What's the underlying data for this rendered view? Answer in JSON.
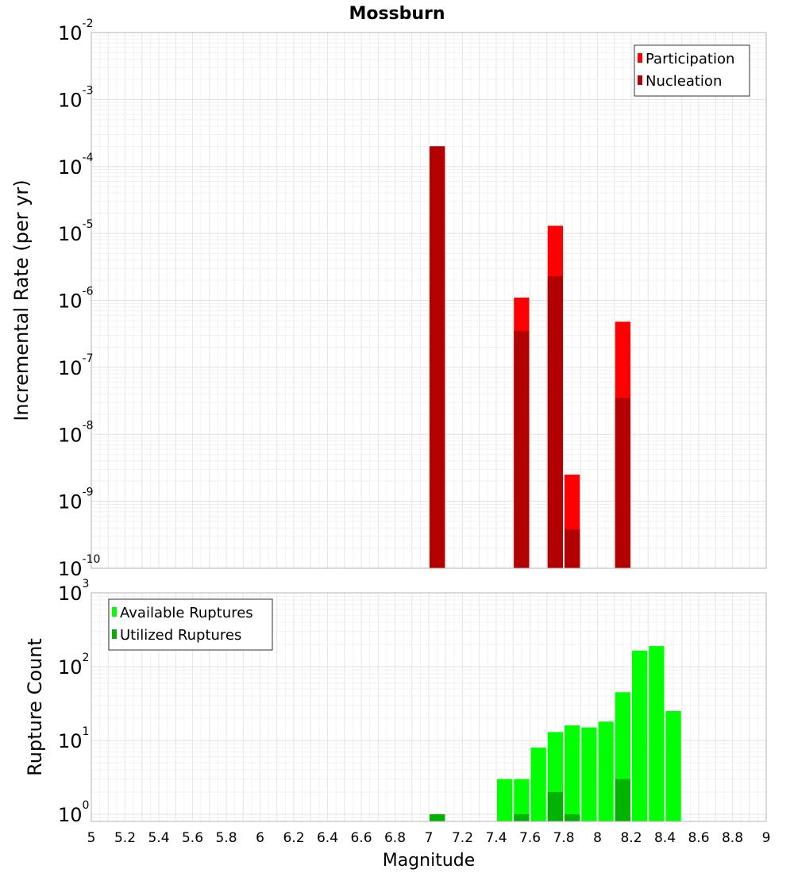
{
  "chart_data": [
    {
      "type": "bar",
      "title": "Mossburn",
      "ylabel": "Incremental Rate (per yr)",
      "xlabel": "",
      "xlim": [
        5,
        9
      ],
      "ylim": [
        1e-10,
        0.01
      ],
      "yscale": "log",
      "bar_width": 0.1,
      "grid": true,
      "legend_placement": "top-right",
      "y_ticks": [
        {
          "base": "10",
          "exp": "-10"
        },
        {
          "base": "10",
          "exp": "-9"
        },
        {
          "base": "10",
          "exp": "-8"
        },
        {
          "base": "10",
          "exp": "-7"
        },
        {
          "base": "10",
          "exp": "-6"
        },
        {
          "base": "10",
          "exp": "-5"
        },
        {
          "base": "10",
          "exp": "-4"
        },
        {
          "base": "10",
          "exp": "-3"
        },
        {
          "base": "10",
          "exp": "-2"
        }
      ],
      "series": [
        {
          "name": "Participation",
          "color": "#ff0000",
          "points": [
            {
              "x": 7.05,
              "y": 0.0002
            },
            {
              "x": 7.55,
              "y": 1.1e-06
            },
            {
              "x": 7.75,
              "y": 1.3e-05
            },
            {
              "x": 7.85,
              "y": 2.5e-09
            },
            {
              "x": 8.15,
              "y": 4.8e-07
            }
          ]
        },
        {
          "name": "Nucleation",
          "color": "#b30000",
          "points": [
            {
              "x": 7.05,
              "y": 0.0002
            },
            {
              "x": 7.55,
              "y": 3.5e-07
            },
            {
              "x": 7.75,
              "y": 2.3e-06
            },
            {
              "x": 7.85,
              "y": 3.8e-10
            },
            {
              "x": 8.15,
              "y": 3.5e-08
            }
          ]
        }
      ]
    },
    {
      "type": "bar",
      "title": "",
      "ylabel": "Rupture Count",
      "xlabel": "Magnitude",
      "xlim": [
        5,
        9
      ],
      "ylim": [
        0.8,
        1000
      ],
      "yscale": "log",
      "bar_width": 0.1,
      "grid": true,
      "legend_placement": "top-left",
      "y_ticks": [
        {
          "value": 1,
          "base": "10",
          "exp": "0"
        },
        {
          "value": 10,
          "base": "10",
          "exp": "1"
        },
        {
          "value": 100,
          "base": "10",
          "exp": "2"
        },
        {
          "value": 1000,
          "base": "10",
          "exp": "3"
        }
      ],
      "x_ticks": [
        "5",
        "5.2",
        "5.4",
        "5.6",
        "5.8",
        "6",
        "6.2",
        "6.4",
        "6.6",
        "6.8",
        "7",
        "7.2",
        "7.4",
        "7.6",
        "7.8",
        "8",
        "8.2",
        "8.4",
        "8.6",
        "8.8",
        "9"
      ],
      "series": [
        {
          "name": "Available Ruptures",
          "color": "#00ff00",
          "points": [
            {
              "x": 7.05,
              "y": 1
            },
            {
              "x": 7.45,
              "y": 3
            },
            {
              "x": 7.55,
              "y": 3
            },
            {
              "x": 7.65,
              "y": 8
            },
            {
              "x": 7.75,
              "y": 13
            },
            {
              "x": 7.85,
              "y": 16
            },
            {
              "x": 7.95,
              "y": 15
            },
            {
              "x": 8.05,
              "y": 18
            },
            {
              "x": 8.15,
              "y": 45
            },
            {
              "x": 8.25,
              "y": 165
            },
            {
              "x": 8.35,
              "y": 190
            },
            {
              "x": 8.45,
              "y": 25
            }
          ]
        },
        {
          "name": "Utilized Ruptures",
          "color": "#00b300",
          "points": [
            {
              "x": 7.05,
              "y": 1
            },
            {
              "x": 7.55,
              "y": 1
            },
            {
              "x": 7.75,
              "y": 2
            },
            {
              "x": 7.85,
              "y": 1
            },
            {
              "x": 8.15,
              "y": 3
            }
          ]
        }
      ]
    }
  ]
}
